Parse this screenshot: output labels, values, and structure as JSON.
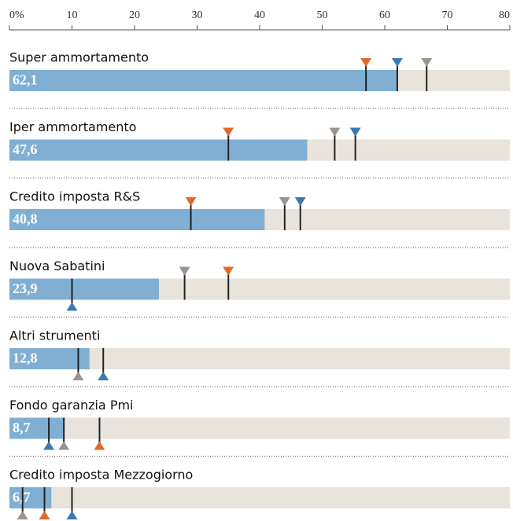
{
  "chart_data": {
    "type": "bar",
    "categories": [
      "Super ammortamento",
      "Iper ammortamento",
      "Credito imposta R&S",
      "Nuova Sabatini",
      "Altri strumenti",
      "Fondo garanzia Pmi",
      "Credito imposta Mezzogiorno"
    ],
    "values": [
      62.1,
      47.6,
      40.8,
      23.9,
      12.8,
      8.7,
      6.7
    ],
    "value_labels": [
      "62,1",
      "47,6",
      "40,8",
      "23,9",
      "12,8",
      "8,7",
      "6,7"
    ],
    "color": "#80afd3",
    "background_color": "#e8e4dc",
    "markers": [
      {
        "color": "#e0692a",
        "values": [
          57,
          35,
          29,
          35,
          null,
          14.4,
          5.6
        ],
        "sides": [
          "above",
          "above",
          "above",
          "above",
          null,
          "below",
          "below"
        ]
      },
      {
        "color": "#3d78b0",
        "values": [
          62,
          55.3,
          46.5,
          10,
          15,
          6.3,
          10
        ],
        "sides": [
          "above",
          "above",
          "above",
          "below",
          "below",
          "below",
          "below"
        ]
      },
      {
        "color": "#9b938c",
        "values": [
          66.7,
          52,
          44,
          28,
          11,
          8.7,
          2.1
        ],
        "sides": [
          "above",
          "above",
          "above",
          "above",
          "below",
          "below",
          "below"
        ]
      }
    ],
    "xlim": [
      0,
      80
    ],
    "xticks": [
      {
        "value": 0,
        "label": "0%"
      },
      10,
      20,
      30,
      40,
      50,
      60,
      70,
      80
    ]
  }
}
